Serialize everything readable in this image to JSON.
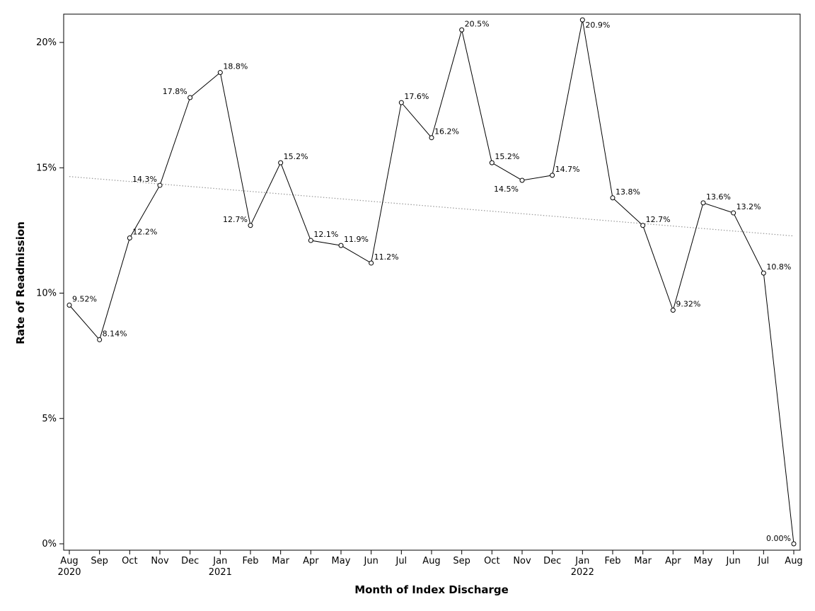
{
  "chart_data": {
    "type": "line",
    "xlabel": "Month of Index Discharge",
    "ylabel": "Rate of Readmission",
    "ylim": [
      0,
      0.21
    ],
    "y_ticks": [
      {
        "value": 0,
        "label": "0%"
      },
      {
        "value": 0.05,
        "label": "5%"
      },
      {
        "value": 0.1,
        "label": "10%"
      },
      {
        "value": 0.15,
        "label": "15%"
      },
      {
        "value": 0.2,
        "label": "20%"
      }
    ],
    "categories": [
      "Aug",
      "Sep",
      "Oct",
      "Nov",
      "Dec",
      "Jan",
      "Feb",
      "Mar",
      "Apr",
      "May",
      "Jun",
      "Jul",
      "Aug",
      "Sep",
      "Oct",
      "Nov",
      "Dec",
      "Jan",
      "Feb",
      "Mar",
      "Apr",
      "May",
      "Jun",
      "Jul",
      "Aug"
    ],
    "year_labels": [
      {
        "index": 0,
        "label": "2020"
      },
      {
        "index": 5,
        "label": "2021"
      },
      {
        "index": 17,
        "label": "2022"
      }
    ],
    "series": [
      {
        "values": [
          0.0952,
          0.0814,
          0.122,
          0.143,
          0.178,
          0.188,
          0.127,
          0.152,
          0.121,
          0.119,
          0.112,
          0.176,
          0.162,
          0.205,
          0.152,
          0.145,
          0.147,
          0.209,
          0.138,
          0.127,
          0.0932,
          0.136,
          0.132,
          0.108,
          0.0
        ],
        "labels": [
          "9.52%",
          "8.14%",
          "12.2%",
          "14.3%",
          "17.8%",
          "18.8%",
          "12.7%",
          "15.2%",
          "12.1%",
          "11.9%",
          "11.2%",
          "17.6%",
          "16.2%",
          "20.5%",
          "15.2%",
          "14.5%",
          "14.7%",
          "20.9%",
          "13.8%",
          "12.7%",
          "9.32%",
          "13.6%",
          "13.2%",
          "10.8%",
          "0.00%"
        ],
        "marker": "open-circle",
        "color": "#000000"
      }
    ],
    "trend_line": {
      "start": 0.1465,
      "end": 0.1228,
      "style": "dotted",
      "color": "#999999"
    },
    "grid": false,
    "legend": "none"
  }
}
